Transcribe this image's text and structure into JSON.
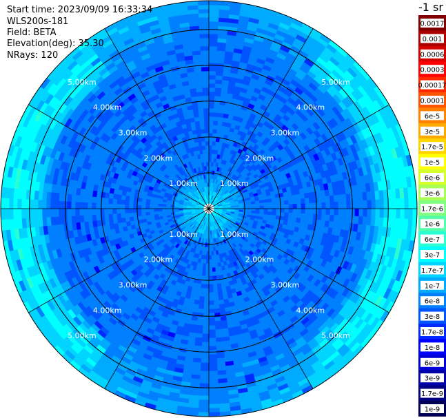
{
  "header": {
    "start_time": "Start time: 2023/09/09 16:33:34",
    "device": "WLS200s-181",
    "field": "Field: BETA",
    "elevation": "Elevation(deg): 35.30",
    "nrays": "NRays: 120"
  },
  "colorbar": {
    "unit_label": "-1 sr",
    "labels": [
      "0.0017",
      "0.001",
      "0.0006",
      "0.0003",
      "0.00017",
      "0.0001",
      "6e-5",
      "3e-5",
      "1.7e-5",
      "1e-5",
      "6e-6",
      "3e-6",
      "1.7e-6",
      "1e-6",
      "6e-7",
      "3e-7",
      "1.7e-7",
      "1e-7",
      "6e-8",
      "3e-8",
      "1.7e-8",
      "1e-8",
      "6e-9",
      "3e-9",
      "1.7e-9",
      "1e-9"
    ],
    "colors": [
      "#800000",
      "#aa0000",
      "#d40000",
      "#ff0000",
      "#ff2a00",
      "#ff5500",
      "#ff8000",
      "#ffaa00",
      "#ffd400",
      "#ffff00",
      "#d4ff2a",
      "#aaff55",
      "#80ff80",
      "#55ffaa",
      "#2affd4",
      "#00ffff",
      "#00d4ff",
      "#00aaff",
      "#0080ff",
      "#0055ff",
      "#002aff",
      "#0000ff",
      "#0000d4",
      "#0000aa",
      "#000080",
      "#000055"
    ]
  },
  "chart_data": {
    "type": "heatmap",
    "subtype": "polar-ppi",
    "field": "BETA",
    "rays": 120,
    "max_range_km": 5.8,
    "range_rings_km": [
      1.0,
      2.0,
      3.0,
      4.0,
      5.0
    ],
    "ring_labels": [
      "1.00km",
      "2.00km",
      "3.00km",
      "4.00km",
      "5.00km"
    ],
    "spoke_interval_deg": 30,
    "pattern": "mostly blue (1e-8 to 1e-7), cyan/green near center and at far range on left and right (~1e-7 to 1e-6)"
  }
}
